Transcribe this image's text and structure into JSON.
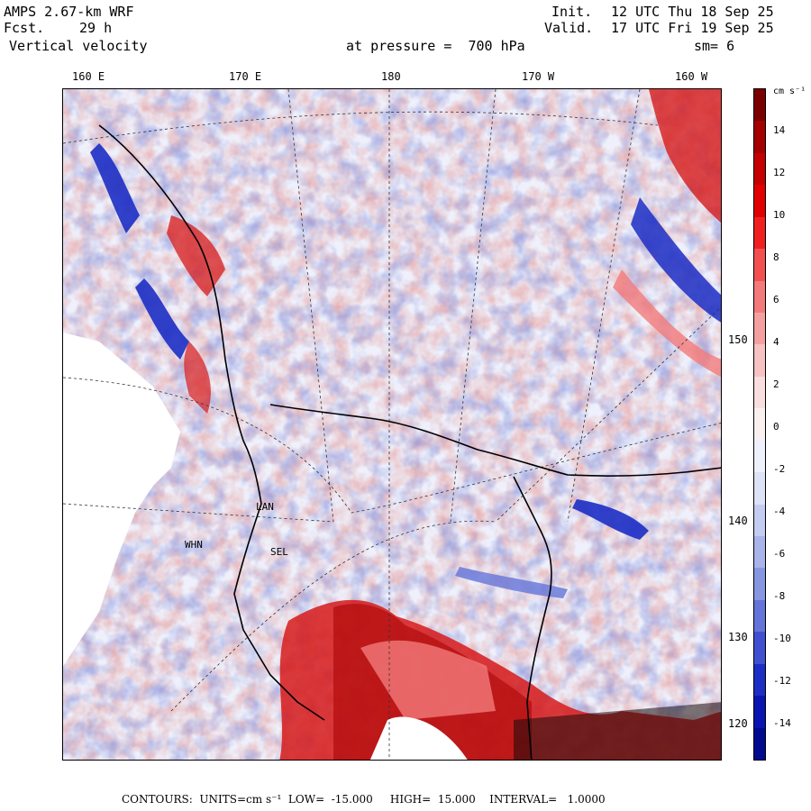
{
  "header": {
    "model": "AMPS 2.67-km WRF",
    "forecast_label": "Fcst.",
    "forecast_hours": "29 h",
    "field": "Vertical velocity",
    "init_label": "Init.",
    "init_time": "12 UTC Thu 18 Sep 25",
    "valid_label": "Valid.",
    "valid_time": "17 UTC Fri 19 Sep 25",
    "pressure_text": "at pressure =  700 hPa",
    "smoothing": "sm= 6"
  },
  "longitude_labels": [
    "160 E",
    "170 E",
    "180",
    "170 W",
    "160 W"
  ],
  "latitude_labels": [
    "150 W",
    "140 W",
    "130 W",
    "120 W"
  ],
  "colorbar": {
    "units": "cm s⁻¹",
    "tick_labels": [
      "14",
      "12",
      "10",
      "8",
      "6",
      "4",
      "2",
      "0",
      "-2",
      "-4",
      "-6",
      "-8",
      "-10",
      "-12",
      "-14"
    ],
    "colors_top_to_bottom": [
      "#7a0000",
      "#a40000",
      "#c40000",
      "#e00000",
      "#f02020",
      "#f25050",
      "#f27a7a",
      "#f4a0a0",
      "#f6c2c2",
      "#f8dede",
      "#f9f0f0",
      "#eef0fb",
      "#dde2f7",
      "#c4cdf1",
      "#a8b4ea",
      "#8796e0",
      "#6474d8",
      "#4050d0",
      "#1c2ec4",
      "#0a14b0",
      "#020a90"
    ]
  },
  "stations": [
    "LAN",
    "WHN",
    "SEL"
  ],
  "footer": {
    "contours_label": "CONTOURS:",
    "units": "UNITS=cm s⁻¹",
    "low": "LOW=  -15.000",
    "high": "HIGH=  15.000",
    "interval": "INTERVAL=   1.0000"
  },
  "map_data": {
    "projection": "polar stereographic",
    "field": "Vertical velocity",
    "level": "700 hPa",
    "units": "cm s^-1",
    "contour_low": -15,
    "contour_high": 15,
    "contour_interval": 1
  }
}
